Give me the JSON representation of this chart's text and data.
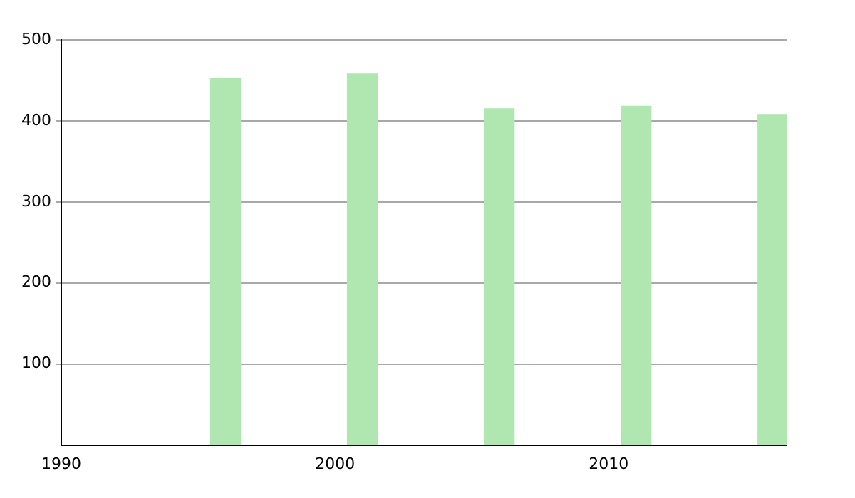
{
  "chart_data": {
    "type": "bar",
    "x": [
      1996,
      2001,
      2006,
      2011,
      2016
    ],
    "values": [
      453,
      458,
      415,
      418,
      408
    ],
    "color": "#b0e6b0",
    "xlim": [
      1990,
      2016.5
    ],
    "xticks": [
      1990,
      2000,
      2010
    ],
    "ylim": [
      0,
      500
    ],
    "yticks": [
      100,
      200,
      300,
      400,
      500
    ],
    "grid": "y",
    "legend": false
  }
}
